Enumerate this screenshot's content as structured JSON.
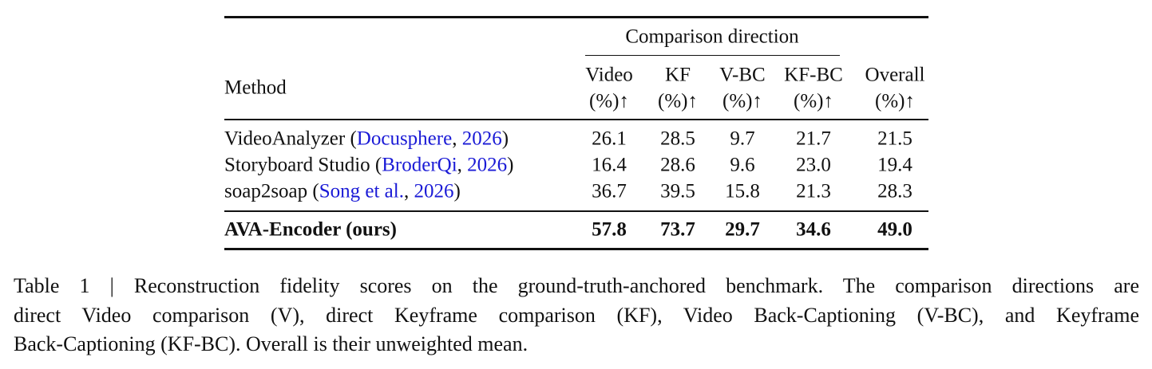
{
  "table": {
    "header": {
      "method": "Method",
      "group": "Comparison direction",
      "columns": [
        {
          "name": "Video",
          "unit": "(%)↑"
        },
        {
          "name": "KF",
          "unit": "(%)↑"
        },
        {
          "name": "V-BC",
          "unit": "(%)↑"
        },
        {
          "name": "KF-BC",
          "unit": "(%)↑"
        },
        {
          "name": "Overall",
          "unit": "(%)↑"
        }
      ]
    },
    "rows": [
      {
        "method": [
          {
            "text": "VideoAnalyzer ("
          },
          {
            "text": "Docusphere",
            "link": true
          },
          {
            "text": ", "
          },
          {
            "text": "2026",
            "link": true
          },
          {
            "text": ")"
          }
        ],
        "cells": [
          "26.1",
          "28.5",
          "9.7",
          "21.7",
          "21.5"
        ],
        "bold": false
      },
      {
        "method": [
          {
            "text": "Storyboard Studio ("
          },
          {
            "text": "BroderQi",
            "link": true
          },
          {
            "text": ", "
          },
          {
            "text": "2026",
            "link": true
          },
          {
            "text": ")"
          }
        ],
        "cells": [
          "16.4",
          "28.6",
          "9.6",
          "23.0",
          "19.4"
        ],
        "bold": false
      },
      {
        "method": [
          {
            "text": "soap2soap ("
          },
          {
            "text": "Song et al.",
            "link": true
          },
          {
            "text": ", "
          },
          {
            "text": "2026",
            "link": true
          },
          {
            "text": ")"
          }
        ],
        "cells": [
          "36.7",
          "39.5",
          "15.8",
          "21.3",
          "28.3"
        ],
        "bold": false
      },
      {
        "method": [
          {
            "text": "AVA-Encoder (ours)"
          }
        ],
        "cells": [
          "57.8",
          "73.7",
          "29.7",
          "34.6",
          "49.0"
        ],
        "bold": true
      }
    ]
  },
  "caption": {
    "lines": [
      "Table 1 | Reconstruction fidelity scores on the ground-truth-anchored benchmark. The comparison directions are",
      "direct Video comparison (V), direct Keyframe comparison (KF), Video Back-Captioning (V-BC), and Keyframe",
      "Back-Captioning (KF-BC). Overall is their unweighted mean."
    ]
  }
}
